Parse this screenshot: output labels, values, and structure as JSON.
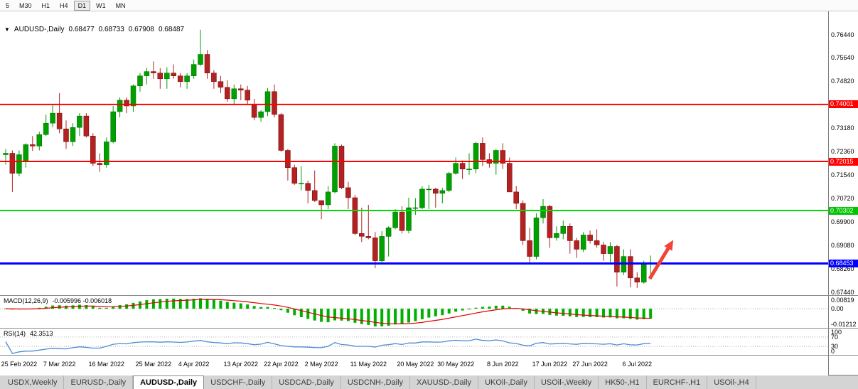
{
  "toolbar": {
    "periods": [
      {
        "label": "5",
        "active": false
      },
      {
        "label": "M30",
        "active": false
      },
      {
        "label": "H1",
        "active": false
      },
      {
        "label": "H4",
        "active": false
      },
      {
        "label": "D1",
        "active": true
      },
      {
        "label": "W1",
        "active": false
      },
      {
        "label": "MN",
        "active": false
      }
    ]
  },
  "chart": {
    "title_symbol": "AUDUSD-,Daily",
    "dropdown_icon": "▼",
    "ohlc": {
      "open": "0.68477",
      "high": "0.68733",
      "low": "0.67908",
      "close": "0.68487"
    }
  },
  "price_axis": {
    "ticks": [
      "0.76440",
      "0.75640",
      "0.74820",
      "0.73180",
      "0.72360",
      "0.71540",
      "0.70720",
      "0.69900",
      "0.69080",
      "0.68260",
      "0.67440"
    ],
    "badges": [
      {
        "value": "0.74001",
        "color": "#ff0000"
      },
      {
        "value": "0.72015",
        "color": "#ff0000"
      },
      {
        "value": "0.70302",
        "color": "#00c400"
      },
      {
        "value": "0.68453",
        "color": "#0000ff"
      }
    ]
  },
  "indicators": {
    "macd": {
      "label": "MACD(12,26,9)",
      "values": "-0.005996 -0.006018",
      "axis": [
        {
          "text": "0.00819",
          "value": 0.00819
        },
        {
          "text": "0.00",
          "value": 0
        },
        {
          "text": "-0.01212",
          "value": -0.01212
        }
      ]
    },
    "rsi": {
      "label": "RSI(14)",
      "value": "42.3513",
      "axis": [
        {
          "text": "100",
          "value": 100
        },
        {
          "text": "70",
          "value": 70
        },
        {
          "text": "30",
          "value": 30
        },
        {
          "text": "0",
          "value": 0
        }
      ],
      "levels": [
        70,
        30
      ]
    }
  },
  "time_axis": {
    "labels": [
      {
        "text": "25 Feb 2022",
        "index": 2
      },
      {
        "text": "7 Mar 2022",
        "index": 8
      },
      {
        "text": "16 Mar 2022",
        "index": 15
      },
      {
        "text": "25 Mar 2022",
        "index": 22
      },
      {
        "text": "4 Apr 2022",
        "index": 28
      },
      {
        "text": "13 Apr 2022",
        "index": 35
      },
      {
        "text": "22 Apr 2022",
        "index": 41
      },
      {
        "text": "2 May 2022",
        "index": 47
      },
      {
        "text": "11 May 2022",
        "index": 54
      },
      {
        "text": "20 May 2022",
        "index": 61
      },
      {
        "text": "30 May 2022",
        "index": 67
      },
      {
        "text": "8 Jun 2022",
        "index": 74
      },
      {
        "text": "17 Jun 2022",
        "index": 81
      },
      {
        "text": "27 Jun 2022",
        "index": 87
      },
      {
        "text": "6 Jul 2022",
        "index": 94
      }
    ]
  },
  "tabs": [
    {
      "label": "USDX,Weekly",
      "active": false
    },
    {
      "label": "EURUSD-,Daily",
      "active": false
    },
    {
      "label": "AUDUSD-,Daily",
      "active": true
    },
    {
      "label": "USDCHF-,Daily",
      "active": false
    },
    {
      "label": "USDCAD-,Daily",
      "active": false
    },
    {
      "label": "USDCNH-,Daily",
      "active": false
    },
    {
      "label": "XAUUSD-,Daily",
      "active": false
    },
    {
      "label": "UKOil-,Daily",
      "active": false
    },
    {
      "label": "USOil-,Weekly",
      "active": false
    },
    {
      "label": "HK50-,H1",
      "active": false
    },
    {
      "label": "EURCHF-,H1",
      "active": false
    },
    {
      "label": "USOil-,H4",
      "active": false
    }
  ],
  "chart_data": {
    "type": "candlestick",
    "symbol": "AUDUSD-",
    "timeframe": "Daily",
    "title": "AUDUSD-,Daily",
    "ylim": [
      0.6735,
      0.7725
    ],
    "current_bar": {
      "open": 0.68477,
      "high": 0.68733,
      "low": 0.67908,
      "close": 0.68487
    },
    "colors": {
      "bull": "#00a000",
      "bear": "#b22222",
      "bull_edge": "#006600",
      "bear_edge": "#6f0000",
      "macd_hist": "#00b000",
      "macd_signal": "#e00000",
      "rsi_line": "#4c8bd4",
      "level_dotted": "#b0b0b0",
      "zero_line": "#aaaaaa"
    },
    "horizontal_lines": [
      {
        "price": 0.74001,
        "color": "#ff0000",
        "width": 2
      },
      {
        "price": 0.72015,
        "color": "#ff0000",
        "width": 2
      },
      {
        "price": 0.70302,
        "color": "#00dd00",
        "width": 2
      },
      {
        "price": 0.68453,
        "color": "#0000ff",
        "width": 3
      }
    ],
    "annotation": {
      "type": "arrow-up",
      "color": "#f44336",
      "x1": 914,
      "y1": 376,
      "x2": 942,
      "y2": 330
    },
    "macd_params": {
      "fast": 12,
      "slow": 26,
      "signal": 9,
      "current_main": -0.005996,
      "current_signal": -0.006018,
      "axis_max": 0.00819,
      "axis_min": -0.01212
    },
    "rsi_params": {
      "period": 14,
      "current": 42.3513,
      "levels": [
        70,
        30
      ]
    },
    "candles": [
      [
        "2022-02-23",
        0.7225,
        0.7245,
        0.719,
        0.723
      ],
      [
        "2022-02-24",
        0.723,
        0.724,
        0.7095,
        0.716
      ],
      [
        "2022-02-25",
        0.716,
        0.724,
        0.715,
        0.7225
      ],
      [
        "2022-02-28",
        0.72,
        0.7265,
        0.718,
        0.726
      ],
      [
        "2022-03-01",
        0.726,
        0.729,
        0.7238,
        0.7255
      ],
      [
        "2022-03-02",
        0.7255,
        0.7305,
        0.724,
        0.7295
      ],
      [
        "2022-03-03",
        0.7295,
        0.7365,
        0.729,
        0.7335
      ],
      [
        "2022-03-04",
        0.7335,
        0.74,
        0.732,
        0.737
      ],
      [
        "2022-03-07",
        0.737,
        0.744,
        0.73,
        0.7315
      ],
      [
        "2022-03-08",
        0.7315,
        0.7345,
        0.7245,
        0.727
      ],
      [
        "2022-03-09",
        0.727,
        0.7335,
        0.7255,
        0.732
      ],
      [
        "2022-03-10",
        0.732,
        0.737,
        0.729,
        0.736
      ],
      [
        "2022-03-11",
        0.736,
        0.737,
        0.7285,
        0.729
      ],
      [
        "2022-03-14",
        0.729,
        0.73,
        0.7185,
        0.7195
      ],
      [
        "2022-03-15",
        0.7195,
        0.723,
        0.7165,
        0.719
      ],
      [
        "2022-03-16",
        0.719,
        0.7285,
        0.718,
        0.727
      ],
      [
        "2022-03-17",
        0.727,
        0.7395,
        0.7265,
        0.7375
      ],
      [
        "2022-03-18",
        0.7375,
        0.7425,
        0.7355,
        0.7415
      ],
      [
        "2022-03-21",
        0.7415,
        0.7425,
        0.737,
        0.7395
      ],
      [
        "2022-03-22",
        0.7395,
        0.747,
        0.7375,
        0.7465
      ],
      [
        "2022-03-23",
        0.7465,
        0.751,
        0.7445,
        0.75
      ],
      [
        "2022-03-24",
        0.75,
        0.7528,
        0.747,
        0.7515
      ],
      [
        "2022-03-25",
        0.7515,
        0.755,
        0.749,
        0.751
      ],
      [
        "2022-03-28",
        0.751,
        0.7527,
        0.7455,
        0.749
      ],
      [
        "2022-03-29",
        0.749,
        0.753,
        0.7455,
        0.751
      ],
      [
        "2022-03-30",
        0.751,
        0.754,
        0.749,
        0.75
      ],
      [
        "2022-03-31",
        0.75,
        0.751,
        0.746,
        0.748
      ],
      [
        "2022-04-01",
        0.748,
        0.751,
        0.7455,
        0.75
      ],
      [
        "2022-04-04",
        0.75,
        0.7557,
        0.749,
        0.754
      ],
      [
        "2022-04-05",
        0.754,
        0.7661,
        0.7535,
        0.7575
      ],
      [
        "2022-04-06",
        0.7575,
        0.759,
        0.749,
        0.751
      ],
      [
        "2022-04-07",
        0.751,
        0.752,
        0.7455,
        0.748
      ],
      [
        "2022-04-08",
        0.748,
        0.75,
        0.744,
        0.746
      ],
      [
        "2022-04-11",
        0.746,
        0.7485,
        0.741,
        0.742
      ],
      [
        "2022-04-12",
        0.742,
        0.747,
        0.74,
        0.7455
      ],
      [
        "2022-04-13",
        0.7455,
        0.747,
        0.7415,
        0.745
      ],
      [
        "2022-04-14",
        0.745,
        0.7465,
        0.74,
        0.7415
      ],
      [
        "2022-04-18",
        0.74,
        0.742,
        0.7345,
        0.7355
      ],
      [
        "2022-04-19",
        0.7355,
        0.738,
        0.734,
        0.7375
      ],
      [
        "2022-04-20",
        0.7375,
        0.7458,
        0.736,
        0.7445
      ],
      [
        "2022-04-21",
        0.7445,
        0.747,
        0.7355,
        0.7365
      ],
      [
        "2022-04-22",
        0.7365,
        0.737,
        0.7235,
        0.724
      ],
      [
        "2022-04-25",
        0.724,
        0.7245,
        0.7135,
        0.718
      ],
      [
        "2022-04-26",
        0.718,
        0.719,
        0.712,
        0.7125
      ],
      [
        "2022-04-27",
        0.7125,
        0.7185,
        0.71,
        0.7125
      ],
      [
        "2022-04-28",
        0.7125,
        0.7135,
        0.7055,
        0.71
      ],
      [
        "2022-04-29",
        0.71,
        0.717,
        0.706,
        0.7065
      ],
      [
        "2022-05-02",
        0.7065,
        0.7065,
        0.7,
        0.705
      ],
      [
        "2022-05-03",
        0.705,
        0.7115,
        0.7035,
        0.7095
      ],
      [
        "2022-05-04",
        0.7095,
        0.7265,
        0.709,
        0.7255
      ],
      [
        "2022-05-05",
        0.7255,
        0.726,
        0.7105,
        0.711
      ],
      [
        "2022-05-06",
        0.711,
        0.713,
        0.7035,
        0.7075
      ],
      [
        "2022-05-09",
        0.7075,
        0.7085,
        0.6945,
        0.695
      ],
      [
        "2022-05-10",
        0.695,
        0.704,
        0.692,
        0.694
      ],
      [
        "2022-05-11",
        0.694,
        0.705,
        0.693,
        0.6935
      ],
      [
        "2022-05-12",
        0.6935,
        0.6955,
        0.6829,
        0.6855
      ],
      [
        "2022-05-13",
        0.6855,
        0.6958,
        0.685,
        0.694
      ],
      [
        "2022-05-16",
        0.694,
        0.6975,
        0.687,
        0.697
      ],
      [
        "2022-05-17",
        0.697,
        0.7035,
        0.6965,
        0.7025
      ],
      [
        "2022-05-18",
        0.7025,
        0.7045,
        0.695,
        0.696
      ],
      [
        "2022-05-19",
        0.696,
        0.7075,
        0.695,
        0.704
      ],
      [
        "2022-05-20",
        0.704,
        0.7073,
        0.7015,
        0.704
      ],
      [
        "2022-05-23",
        0.704,
        0.7115,
        0.7035,
        0.7105
      ],
      [
        "2022-05-24",
        0.7105,
        0.712,
        0.7035,
        0.7105
      ],
      [
        "2022-05-25",
        0.7105,
        0.711,
        0.704,
        0.709
      ],
      [
        "2022-05-26",
        0.709,
        0.711,
        0.7055,
        0.71
      ],
      [
        "2022-05-27",
        0.71,
        0.7165,
        0.7095,
        0.716
      ],
      [
        "2022-05-30",
        0.716,
        0.7215,
        0.7155,
        0.7195
      ],
      [
        "2022-05-31",
        0.7195,
        0.7205,
        0.714,
        0.7175
      ],
      [
        "2022-06-01",
        0.7175,
        0.723,
        0.7155,
        0.7175
      ],
      [
        "2022-06-02",
        0.7175,
        0.727,
        0.716,
        0.7265
      ],
      [
        "2022-06-03",
        0.7265,
        0.7285,
        0.7185,
        0.7208
      ],
      [
        "2022-06-06",
        0.7208,
        0.723,
        0.718,
        0.7195
      ],
      [
        "2022-06-07",
        0.7195,
        0.7245,
        0.7155,
        0.724
      ],
      [
        "2022-06-08",
        0.724,
        0.7265,
        0.7175,
        0.7195
      ],
      [
        "2022-06-09",
        0.7195,
        0.7215,
        0.7095,
        0.7095
      ],
      [
        "2022-06-10",
        0.7095,
        0.7115,
        0.7035,
        0.7055
      ],
      [
        "2022-06-13",
        0.7055,
        0.7065,
        0.691,
        0.6925
      ],
      [
        "2022-06-14",
        0.6925,
        0.697,
        0.685,
        0.687
      ],
      [
        "2022-06-15",
        0.687,
        0.702,
        0.686,
        0.7005
      ],
      [
        "2022-06-16",
        0.7005,
        0.707,
        0.6985,
        0.7045
      ],
      [
        "2022-06-17",
        0.7045,
        0.705,
        0.69,
        0.6935
      ],
      [
        "2022-06-20",
        0.6935,
        0.6975,
        0.6925,
        0.695
      ],
      [
        "2022-06-21",
        0.695,
        0.6995,
        0.693,
        0.6975
      ],
      [
        "2022-06-22",
        0.6975,
        0.6985,
        0.688,
        0.6925
      ],
      [
        "2022-06-23",
        0.6925,
        0.6935,
        0.6865,
        0.6895
      ],
      [
        "2022-06-24",
        0.6895,
        0.6955,
        0.6885,
        0.6945
      ],
      [
        "2022-06-27",
        0.6945,
        0.696,
        0.6915,
        0.6925
      ],
      [
        "2022-06-28",
        0.6925,
        0.6965,
        0.69,
        0.691
      ],
      [
        "2022-06-29",
        0.691,
        0.692,
        0.6855,
        0.688
      ],
      [
        "2022-06-30",
        0.688,
        0.692,
        0.685,
        0.6905
      ],
      [
        "2022-07-01",
        0.6905,
        0.691,
        0.6765,
        0.6815
      ],
      [
        "2022-07-04",
        0.6815,
        0.6895,
        0.6805,
        0.687
      ],
      [
        "2022-07-05",
        0.687,
        0.6895,
        0.6762,
        0.6795
      ],
      [
        "2022-07-06",
        0.6795,
        0.6815,
        0.676,
        0.678
      ],
      [
        "2022-07-07",
        0.678,
        0.6855,
        0.6775,
        0.6845
      ],
      [
        "2022-07-08",
        0.68477,
        0.68733,
        0.67908,
        0.68487
      ]
    ]
  }
}
